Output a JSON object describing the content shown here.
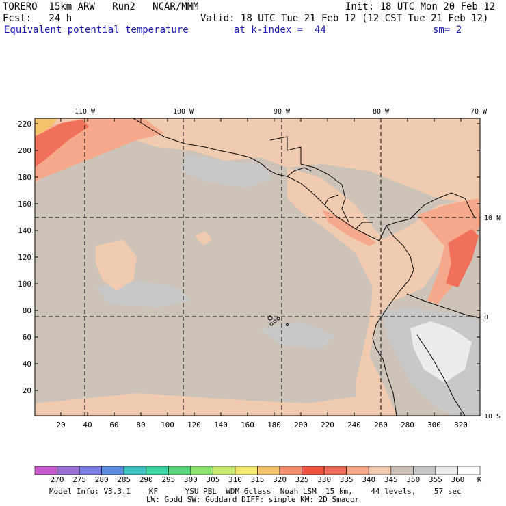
{
  "header": {
    "model": "TORERO  15km ARW   Run2   NCAR/MMM",
    "init": "Init: 18 UTC Mon 20 Feb 12",
    "forecast": "Fcst:   24 h",
    "valid": "Valid: 18 UTC Tue 21 Feb 12 (12 CST Tue 21 Feb 12)",
    "field": "Equivalent potential temperature",
    "kindex": "at k-index =  44",
    "smoothing": "sm= 2"
  },
  "map": {
    "longitude_labels": [
      "110 W",
      "100 W",
      "90 W",
      "80 W",
      "70 W"
    ],
    "latitude_labels": [
      "10 N",
      "0",
      "10 S"
    ],
    "y_grid_labels": [
      "220",
      "200",
      "180",
      "160",
      "140",
      "120",
      "100",
      "80",
      "60",
      "40",
      "20"
    ],
    "x_grid_labels": [
      "20",
      "40",
      "60",
      "80",
      "100",
      "120",
      "140",
      "160",
      "180",
      "200",
      "220",
      "240",
      "260",
      "280",
      "300",
      "320"
    ],
    "colors": {
      "background": "#cdc3b9",
      "warm_light": "#f0cbb0",
      "warm_mid": "#f5a98a",
      "warm_high": "#f0705a",
      "hot": "#f5c36e",
      "cool_grey": "#c8c8c8",
      "cold_white": "#ececec",
      "grid_line": "#000000"
    }
  },
  "colorbar": {
    "labels": [
      "270",
      "275",
      "280",
      "285",
      "290",
      "295",
      "300",
      "305",
      "310",
      "315",
      "320",
      "325",
      "330",
      "335",
      "340",
      "345",
      "350",
      "355",
      "360"
    ],
    "unit": "K",
    "colors": [
      "#c95ac9",
      "#9b6fd6",
      "#7d7de6",
      "#5d8ce0",
      "#3bc2c2",
      "#3bd6a3",
      "#59d67d",
      "#8ae36e",
      "#c8e66e",
      "#f5e66e",
      "#f5c36e",
      "#f5906e",
      "#f0533f",
      "#f06a5a",
      "#f5a98a",
      "#f0cbb0",
      "#cdc3b9",
      "#c8c8c8",
      "#ececec",
      "#ffffff"
    ]
  },
  "footer": {
    "line1": "Model Info: V3.3.1    KF      YSU PBL  WDM 6class  Noah LSM  15 km,    44 levels,    57 sec",
    "line2": "LW: Godd SW: Goddard DIFF: simple KM: 2D Smagor"
  }
}
